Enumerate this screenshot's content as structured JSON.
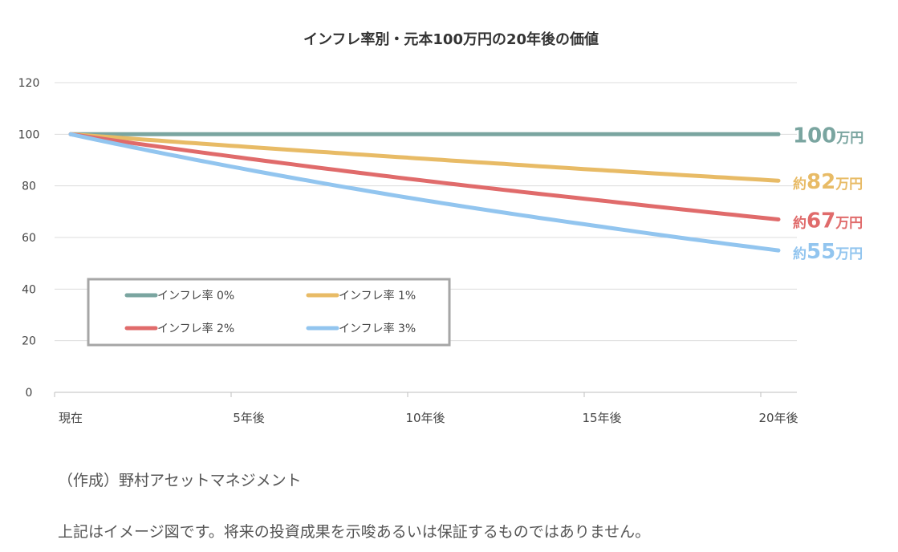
{
  "chart_data": {
    "type": "line",
    "title": "インフレ率別・元本100万円の20年後の価値",
    "x": [
      "現在",
      "5年後",
      "10年後",
      "15年後",
      "20年後"
    ],
    "x_years": [
      0,
      5,
      10,
      15,
      20
    ],
    "ylim": [
      0,
      120
    ],
    "yticks": [
      0,
      20,
      40,
      60,
      80,
      100,
      120
    ],
    "grid": true,
    "legend_position": "bottom-left",
    "series": [
      {
        "name": "インフレ率 0%",
        "color": "#7aa5a0",
        "values": [
          100,
          100,
          100,
          100,
          100
        ],
        "end_label": {
          "prefix": "",
          "value": "100",
          "unit": "万円"
        }
      },
      {
        "name": "インフレ率 1%",
        "color": "#e8bb66",
        "values": [
          100,
          95.1,
          90.5,
          86.1,
          82
        ],
        "end_label": {
          "prefix": "約",
          "value": "82",
          "unit": "万円"
        }
      },
      {
        "name": "インフレ率 2%",
        "color": "#e06b6b",
        "values": [
          100,
          90.6,
          82,
          74.3,
          67
        ],
        "end_label": {
          "prefix": "約",
          "value": "67",
          "unit": "万円"
        }
      },
      {
        "name": "インフレ率 3%",
        "color": "#92c5ef",
        "values": [
          100,
          86.3,
          74.4,
          64.2,
          55
        ],
        "end_label": {
          "prefix": "約",
          "value": "55",
          "unit": "万円"
        }
      }
    ]
  },
  "notes": {
    "source": "（作成）野村アセットマネジメント",
    "disclaimer": "上記はイメージ図です。将来の投資成果を示唆あるいは保証するものではありません。"
  }
}
